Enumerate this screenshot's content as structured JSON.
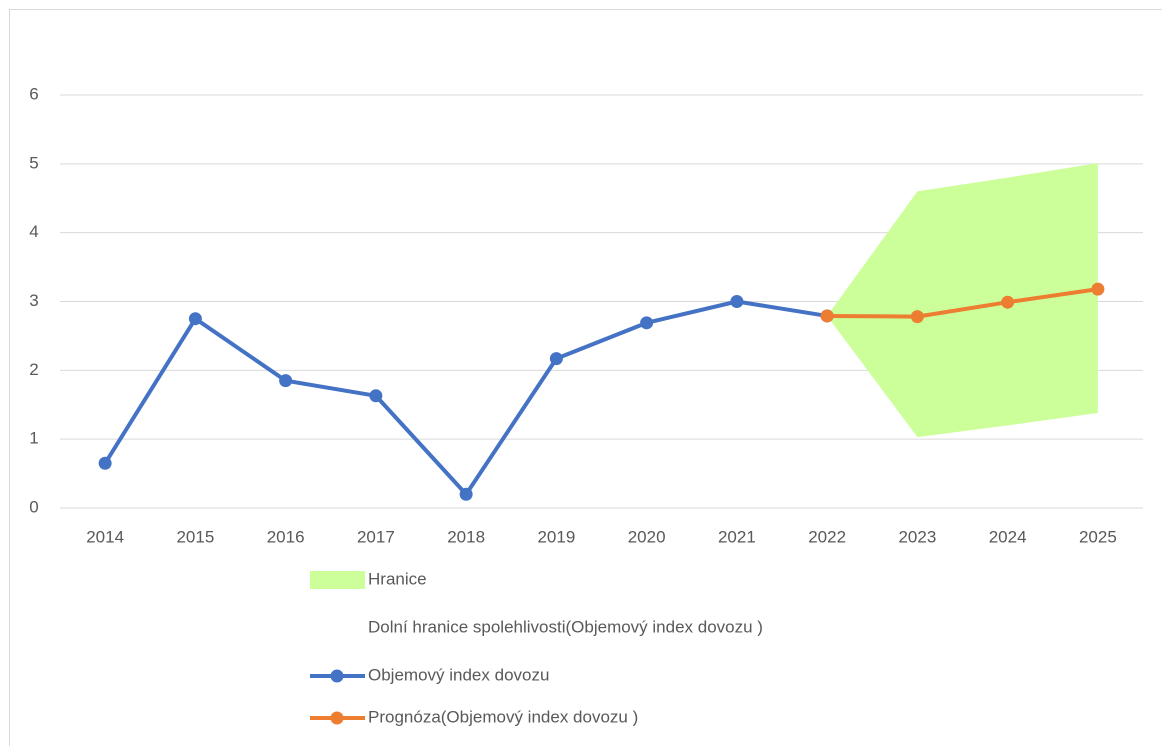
{
  "chart_data": {
    "type": "line",
    "categories": [
      "2014",
      "2015",
      "2016",
      "2017",
      "2018",
      "2019",
      "2020",
      "2021",
      "2022",
      "2023",
      "2024",
      "2025"
    ],
    "series": [
      {
        "name": "Hranice",
        "type": "area",
        "stacked_on": 1,
        "color": "#ccff99",
        "values": [
          null,
          null,
          null,
          null,
          null,
          null,
          null,
          null,
          0,
          3.57,
          3.6,
          3.63
        ]
      },
      {
        "name": "Dolní hranice spolehlivosti(Objemový index dovozu )",
        "type": "area_base",
        "values": [
          null,
          null,
          null,
          null,
          null,
          null,
          null,
          null,
          2.79,
          1.03,
          1.2,
          1.38
        ]
      },
      {
        "name": "Objemový index dovozu",
        "type": "line",
        "color": "#4472c4",
        "values": [
          0.65,
          2.75,
          1.85,
          1.63,
          0.2,
          2.17,
          2.69,
          3.0,
          2.79,
          null,
          null,
          null
        ]
      },
      {
        "name": "Prognóza(Objemový index dovozu )",
        "type": "line",
        "color": "#ed7d31",
        "values": [
          null,
          null,
          null,
          null,
          null,
          null,
          null,
          null,
          2.79,
          2.78,
          2.99,
          3.18
        ]
      }
    ],
    "ylim": [
      0,
      6
    ],
    "yticks": [
      0,
      1,
      2,
      3,
      4,
      5,
      6
    ],
    "grid": true,
    "legend": "bottom"
  }
}
